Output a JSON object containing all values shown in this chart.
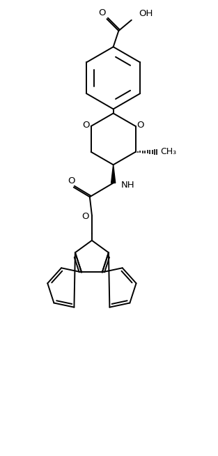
{
  "figsize": [
    3.13,
    6.54
  ],
  "dpi": 100,
  "bg_color": "#ffffff",
  "line_color": "#000000",
  "line_width": 1.4,
  "font_size": 9.5,
  "xlim": [
    0,
    10
  ],
  "ylim": [
    0,
    21
  ]
}
